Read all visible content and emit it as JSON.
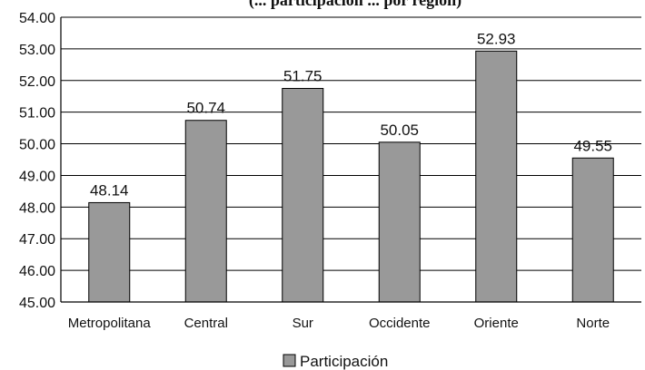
{
  "chart_data": {
    "type": "bar",
    "title": "(... participación ... por región)",
    "categories": [
      "Metropolitana",
      "Central",
      "Sur",
      "Occidente",
      "Oriente",
      "Norte"
    ],
    "series": [
      {
        "name": "Participación",
        "values": [
          48.14,
          50.74,
          51.75,
          50.05,
          52.93,
          49.55
        ],
        "color": "#999999"
      }
    ],
    "value_labels": [
      "48.14",
      "50.74",
      "51.75",
      "50.05",
      "52.93",
      "49.55"
    ],
    "ylim": [
      45,
      54
    ],
    "yticks": [
      45,
      46,
      47,
      48,
      49,
      50,
      51,
      52,
      53,
      54
    ],
    "ytick_labels": [
      "45.00",
      "46.00",
      "47.00",
      "48.00",
      "49.00",
      "50.00",
      "51.00",
      "52.00",
      "53.00",
      "54.00"
    ],
    "grid": true,
    "legend": {
      "position": "bottom",
      "label": "Participación"
    }
  }
}
